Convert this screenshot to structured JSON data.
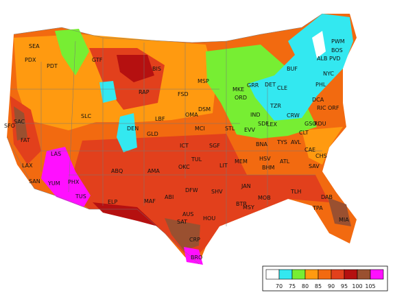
{
  "stations": [
    "SEA",
    "PDX",
    "PDT",
    "GTF",
    "BIS",
    "MSP",
    "RAP",
    "FSD",
    "MKE",
    "GRR",
    "DET",
    "BUF",
    "ALB",
    "PWM",
    "BOS",
    "PVD",
    "NYC",
    "PHL",
    "ORD",
    "CLE",
    "SAC",
    "SFO",
    "SLC",
    "DEN",
    "LBF",
    "OMA",
    "DSM",
    "IND",
    "TZR",
    "SDF",
    "LEX",
    "CRW",
    "DCA",
    "RIC",
    "ORF",
    "GSO",
    "RDU",
    "CLT",
    "TYS",
    "AVL",
    "CAE",
    "CHS",
    "SAV",
    "ATL",
    "BNA",
    "HSV",
    "BHM",
    "MEM",
    "STL",
    "EVV",
    "MCI",
    "SGF",
    "ICT",
    "GLD",
    "TUL",
    "OKC",
    "LIT",
    "FAT",
    "LAS",
    "LAX",
    "SAN",
    "YUM",
    "PHX",
    "TUS",
    "ABQ",
    "AMA",
    "MAF",
    "ABI",
    "DFW",
    "SHV",
    "JAN",
    "BTR",
    "MSY",
    "MOB",
    "TLH",
    "TPA",
    "DAB",
    "MIA",
    "AUS",
    "SAT",
    "HOU",
    "CRP",
    "BRO",
    "ELP"
  ],
  "legend": {
    "labels": [
      70,
      75,
      80,
      85,
      90,
      95,
      100,
      105
    ],
    "colors": [
      "#ffffff",
      "#33e8f0",
      "#77ee33",
      "#ff9a10",
      "#f26a10",
      "#e2401c",
      "#b51010",
      "#9a5030",
      "#ff10ff"
    ]
  }
}
